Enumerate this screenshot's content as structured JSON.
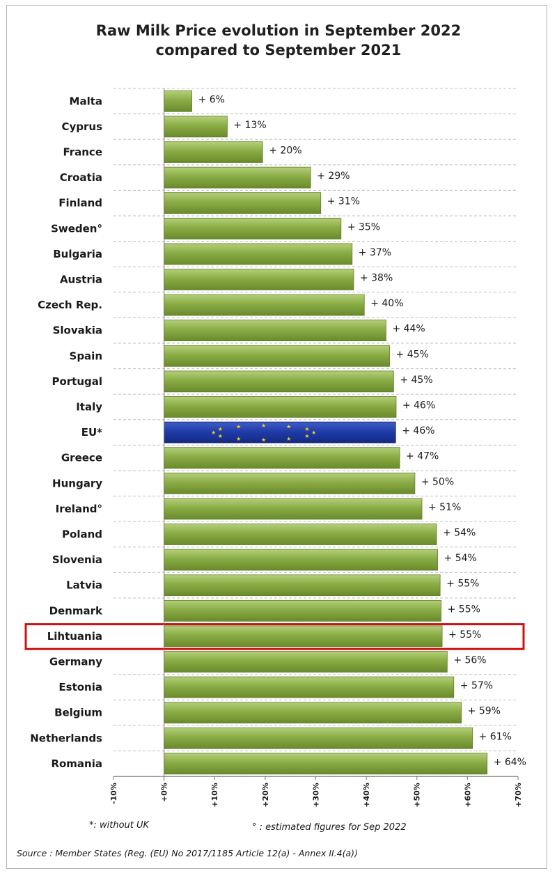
{
  "title": "Raw Milk Price evolution in September 2022\ncompared to September 2021",
  "chart_data": {
    "type": "bar",
    "orientation": "horizontal",
    "title": "Raw Milk Price evolution in September 2022\ncompared to September 2021",
    "categories": [
      "Malta",
      "Cyprus",
      "France",
      "Croatia",
      "Finland",
      "Sweden°",
      "Bulgaria",
      "Austria",
      "Czech Rep.",
      "Slovakia",
      "Spain",
      "Portugal",
      "Italy",
      "EU*",
      "Greece",
      "Hungary",
      "Ireland°",
      "Poland",
      "Slovenia",
      "Latvia",
      "Denmark",
      "Lihtuania",
      "Germany",
      "Estonia",
      "Belgium",
      "Netherlands",
      "Romania"
    ],
    "values": [
      5.5,
      12.5,
      19.5,
      29,
      31,
      35,
      37.2,
      37.5,
      39.6,
      43.9,
      44.6,
      45.4,
      45.9,
      45.8,
      46.6,
      49.6,
      51,
      53.9,
      54.1,
      54.6,
      54.8,
      55,
      56,
      57.3,
      58.8,
      61,
      63.9
    ],
    "value_labels": [
      "+ 6%",
      "+ 13%",
      "+ 20%",
      "+ 29%",
      "+ 31%",
      "+ 35%",
      "+ 37%",
      "+ 38%",
      "+ 40%",
      "+ 44%",
      "+ 45%",
      "+ 45%",
      "+ 46%",
      "+ 46%",
      "+ 47%",
      "+ 50%",
      "+ 51%",
      "+ 54%",
      "+ 54%",
      "+ 55%",
      "+ 55%",
      "+ 55%",
      "+ 56%",
      "+ 57%",
      "+ 59%",
      "+ 61%",
      "+ 64%"
    ],
    "xlim": [
      -10,
      70
    ],
    "x_ticks": [
      -10,
      0,
      10,
      20,
      30,
      40,
      50,
      60,
      70
    ],
    "x_tick_labels": [
      "-10%",
      "+0%",
      "+10%",
      "+20%",
      "+30%",
      "+40%",
      "+50%",
      "+60%",
      "+70%"
    ],
    "grid": "dashed horizontal lines",
    "highlighted_category": "Lihtuania",
    "eu_category": "EU*",
    "colors": {
      "bar": "#8aac45",
      "bar_light": "#a9c76b",
      "bar_dark": "#6e8f30",
      "eu_bar": "#1f3aa6",
      "eu_star": "#f2d21c",
      "highlight_box": "#d01010",
      "grid": "#bfbfbf"
    }
  },
  "notes": {
    "without_uk": "*: without UK",
    "estimated": "° : estimated figures for Sep 2022",
    "source": "Source : Member States (Reg. (EU) No 2017/1185 Article 12(a) - Annex II.4(a))"
  }
}
